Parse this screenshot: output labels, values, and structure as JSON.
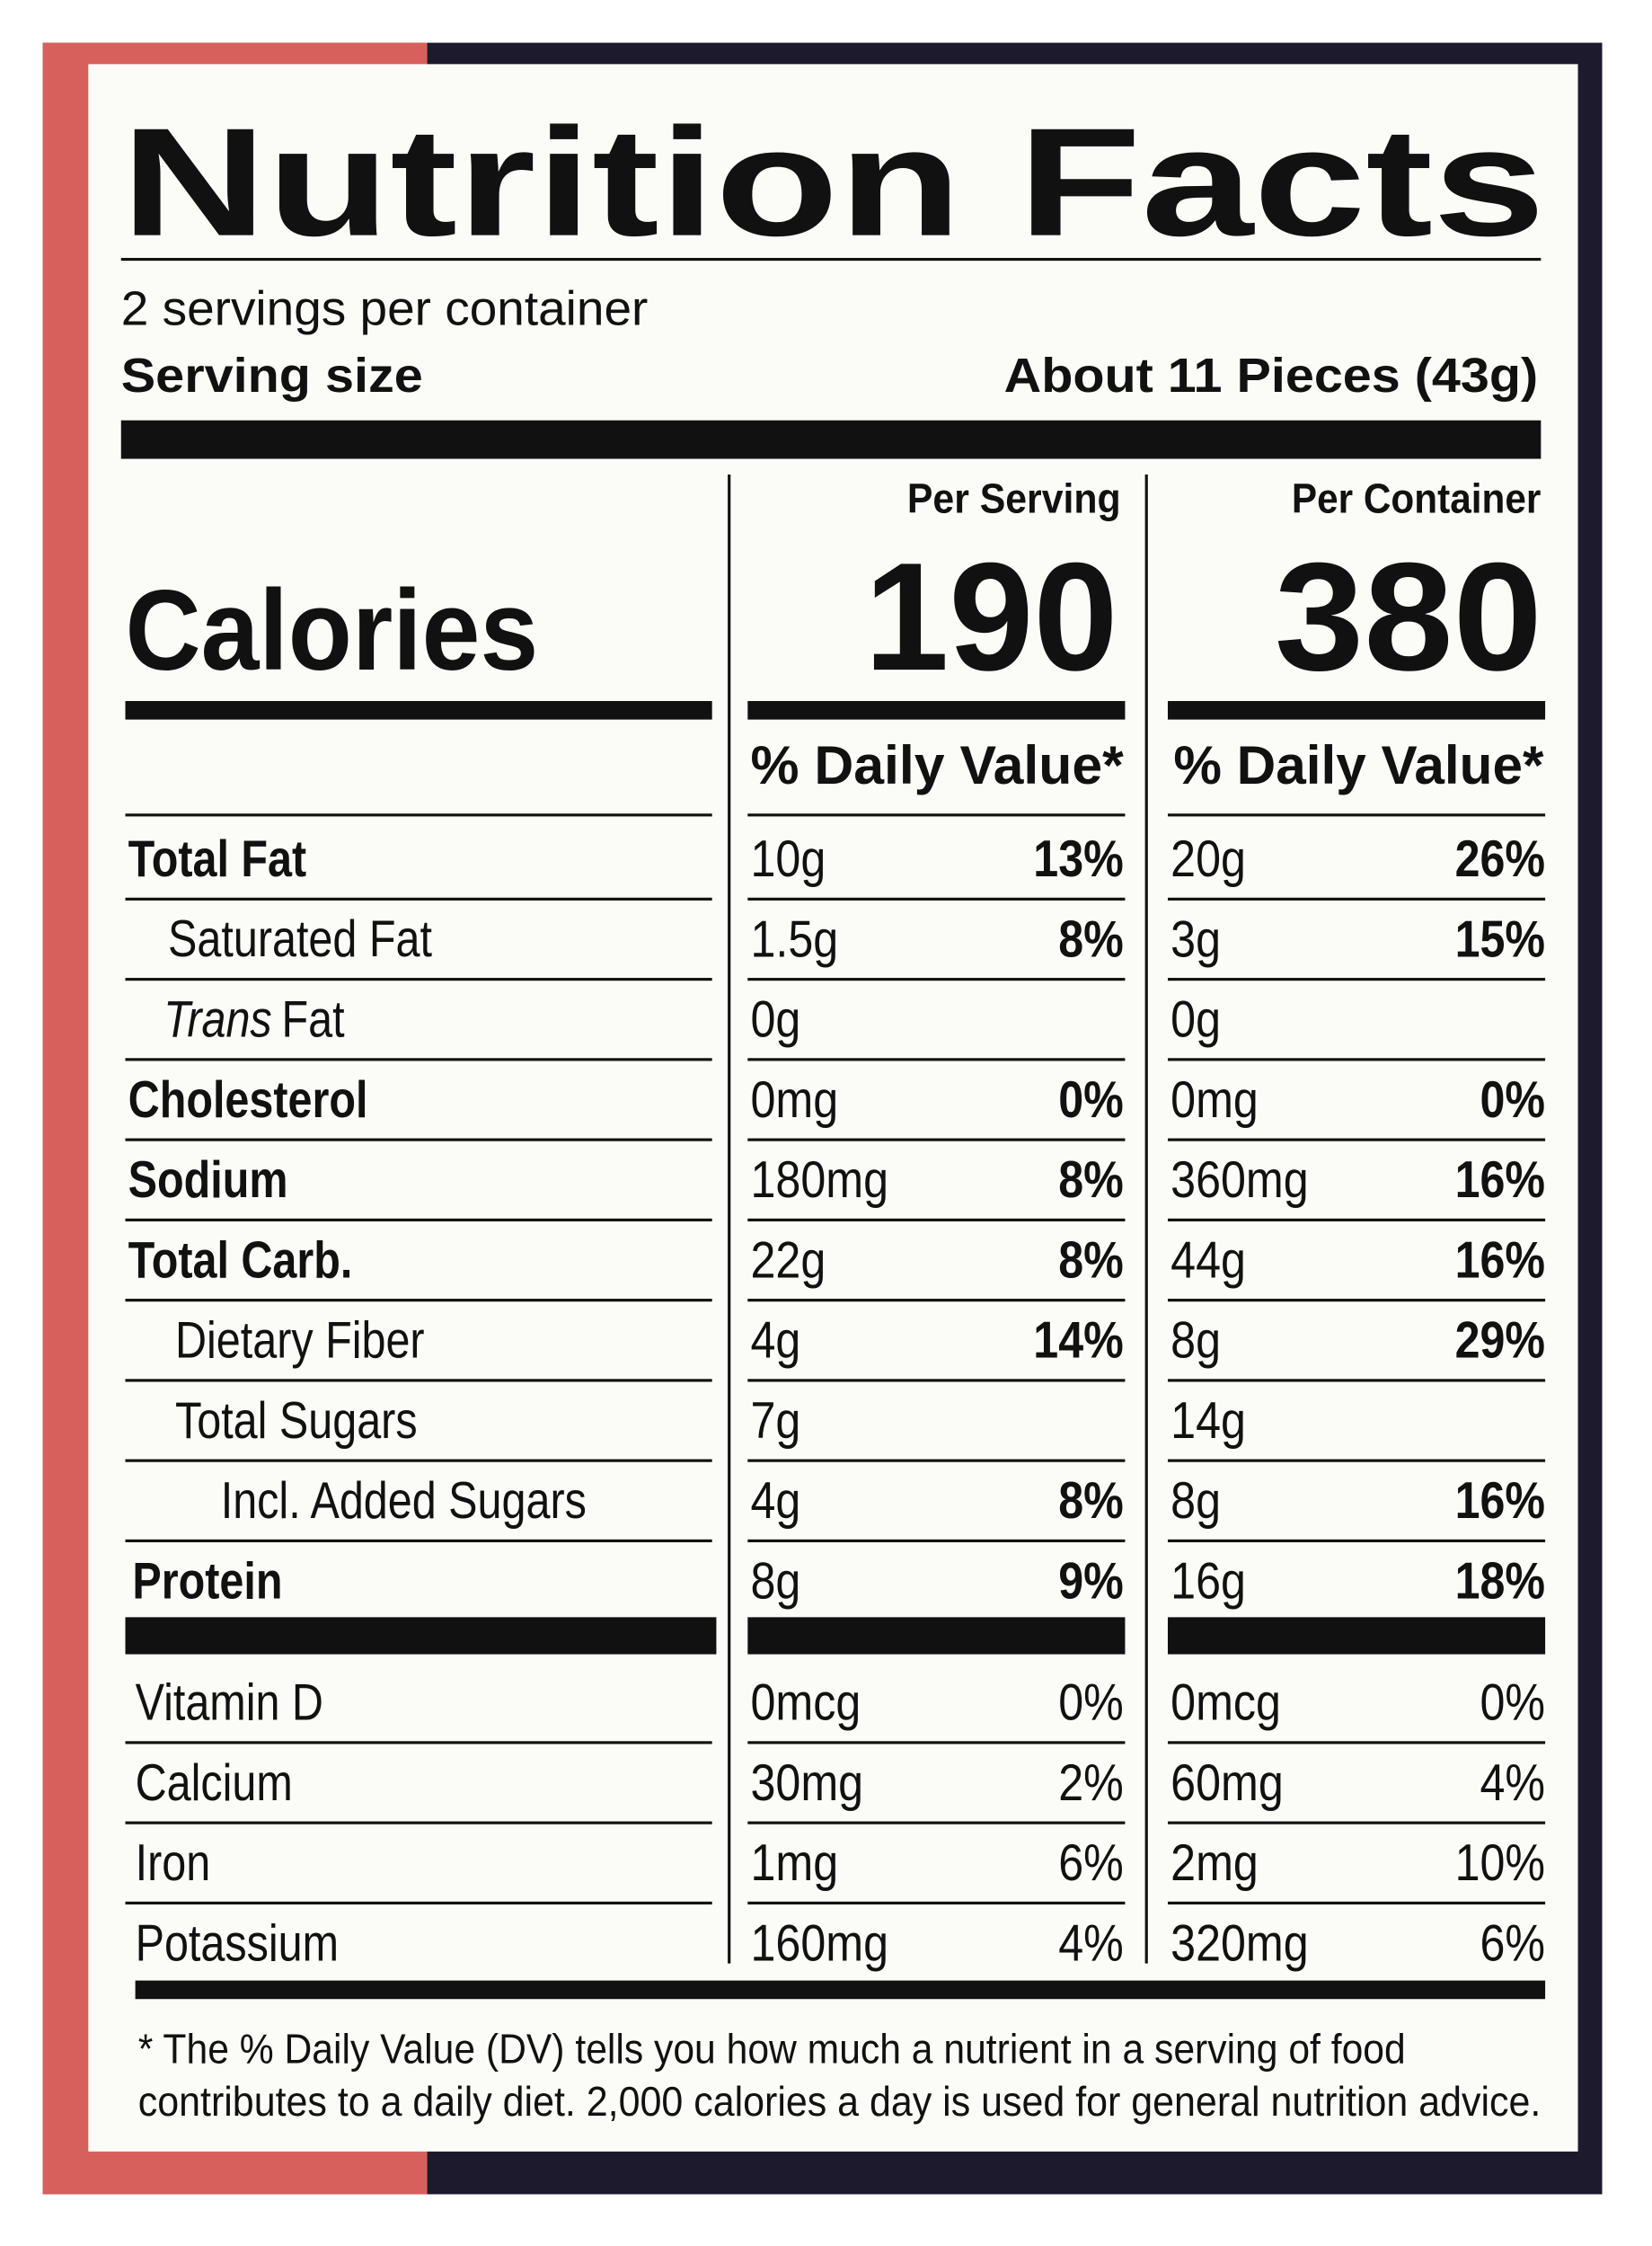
{
  "title": "Nutrition Facts",
  "servings": "2 servings per container",
  "serving_size": {
    "label": "Serving size",
    "value": "About 11 Pieces (43g)"
  },
  "columns": [
    "Per Serving",
    "Per Container"
  ],
  "calories": {
    "label": "Calories",
    "values": [
      "190",
      "380"
    ]
  },
  "dv_header": [
    "% Daily Value*",
    "% Daily Value*"
  ],
  "nutrients": [
    {
      "label": "Total Fat",
      "serving": [
        "10g",
        "13%"
      ],
      "container": [
        "20g",
        "26%"
      ]
    },
    {
      "label": "Saturated Fat",
      "serving": [
        "1.5g",
        "8%"
      ],
      "container": [
        "3g",
        "15%"
      ]
    },
    {
      "label_italic": "Trans",
      "label": "Fat",
      "serving": [
        "0g"
      ],
      "container": [
        "0g"
      ]
    },
    {
      "label": "Cholesterol",
      "serving": [
        "0mg",
        "0%"
      ],
      "container": [
        "0mg",
        "0%"
      ]
    },
    {
      "label": "Sodium",
      "serving": [
        "180mg",
        "8%"
      ],
      "container": [
        "360mg",
        "16%"
      ]
    },
    {
      "label": "Total Carb.",
      "serving": [
        "22g",
        "8%"
      ],
      "container": [
        "44g",
        "16%"
      ]
    },
    {
      "label": "Dietary Fiber",
      "serving": [
        "4g",
        "14%"
      ],
      "container": [
        "8g",
        "29%"
      ]
    },
    {
      "label": "Total Sugars",
      "serving": [
        "7g"
      ],
      "container": [
        "14g"
      ]
    },
    {
      "label": "Incl. Added Sugars",
      "serving": [
        "4g",
        "8%"
      ],
      "container": [
        "8g",
        "16%"
      ]
    },
    {
      "label": "Protein",
      "serving": [
        "8g",
        "9%"
      ],
      "container": [
        "16g",
        "18%"
      ]
    }
  ],
  "vitamins": [
    {
      "label": "Vitamin D",
      "serving": [
        "0mcg",
        "0%"
      ],
      "container": [
        "0mcg",
        "0%"
      ]
    },
    {
      "label": "Calcium",
      "serving": [
        "30mg",
        "2%"
      ],
      "container": [
        "60mg",
        "4%"
      ]
    },
    {
      "label": "Iron",
      "serving": [
        "1mg",
        "6%"
      ],
      "container": [
        "2mg",
        "10%"
      ]
    },
    {
      "label": "Potassium",
      "serving": [
        "160mg",
        "4%"
      ],
      "container": [
        "320mg",
        "6%"
      ]
    }
  ],
  "footnote": [
    "* The % Daily Value (DV) tells you how much a nutrient in a serving of food",
    "contributes to a daily diet. 2,000 calories a day is used for general nutrition advice."
  ]
}
